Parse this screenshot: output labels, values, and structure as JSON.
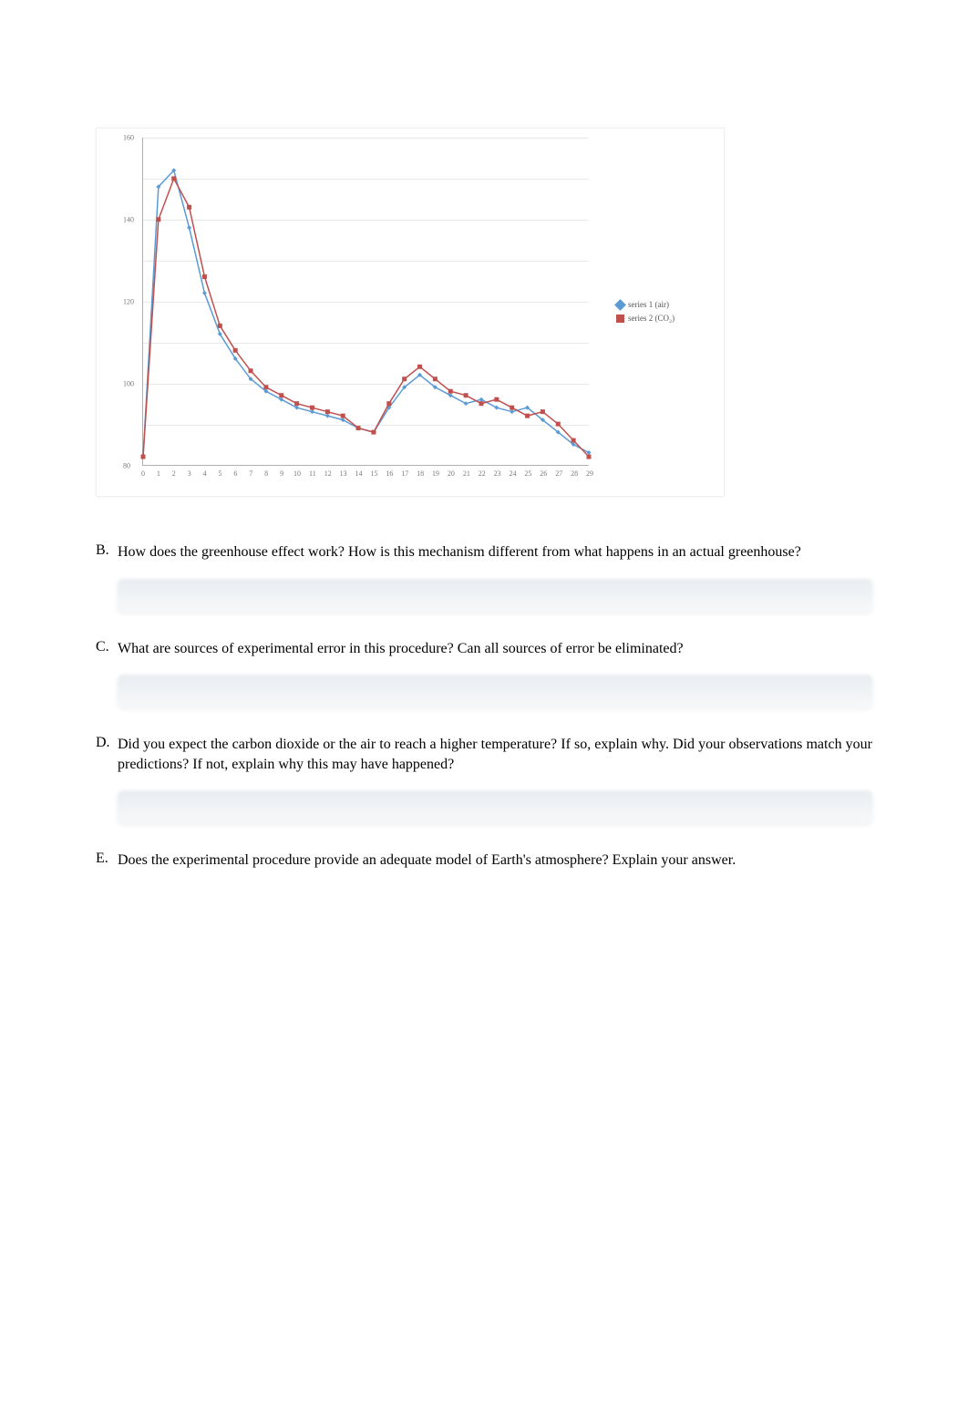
{
  "chart": {
    "type": "line",
    "background_color": "#ffffff",
    "grid_color": "#e8e8e8",
    "axis_color": "#b0b0b0",
    "tick_color": "#787878",
    "tick_fontsize": 8,
    "ylim": [
      80,
      160
    ],
    "xlim": [
      0,
      29
    ],
    "y_ticks": [
      80,
      90,
      100,
      110,
      120,
      130,
      140,
      150,
      160
    ],
    "y_tick_labels": [
      "80",
      "",
      "100",
      "",
      "120",
      "",
      "140",
      "",
      "160"
    ],
    "x_ticks": [
      0,
      1,
      2,
      3,
      4,
      5,
      6,
      7,
      8,
      9,
      10,
      11,
      12,
      13,
      14,
      15,
      16,
      17,
      18,
      19,
      20,
      21,
      22,
      23,
      24,
      25,
      26,
      27,
      28,
      29
    ],
    "x_tick_labels": [
      "0",
      "1",
      "2",
      "3",
      "4",
      "5",
      "6",
      "7",
      "8",
      "9",
      "10",
      "11",
      "12",
      "13",
      "14",
      "15",
      "16",
      "17",
      "18",
      "19",
      "20",
      "21",
      "22",
      "23",
      "24",
      "25",
      "26",
      "27",
      "28",
      "29"
    ],
    "series": [
      {
        "name": "Series 1 (air)",
        "legend_label": "series 1 (air)",
        "color": "#5b9bd5",
        "marker": "diamond",
        "marker_size": 5,
        "line_width": 1.5,
        "data": [
          [
            0,
            82
          ],
          [
            1,
            148
          ],
          [
            2,
            152
          ],
          [
            3,
            138
          ],
          [
            4,
            122
          ],
          [
            5,
            112
          ],
          [
            6,
            106
          ],
          [
            7,
            101
          ],
          [
            8,
            98
          ],
          [
            9,
            96
          ],
          [
            10,
            94
          ],
          [
            11,
            93
          ],
          [
            12,
            92
          ],
          [
            13,
            91
          ],
          [
            14,
            89
          ],
          [
            15,
            88
          ],
          [
            16,
            94
          ],
          [
            17,
            99
          ],
          [
            18,
            102
          ],
          [
            19,
            99
          ],
          [
            20,
            97
          ],
          [
            21,
            95
          ],
          [
            22,
            96
          ],
          [
            23,
            94
          ],
          [
            24,
            93
          ],
          [
            25,
            94
          ],
          [
            26,
            91
          ],
          [
            27,
            88
          ],
          [
            28,
            85
          ],
          [
            29,
            83
          ]
        ]
      },
      {
        "name": "Series 2 (CO2)",
        "legend_label": "series 2 (CO₂)",
        "color": "#c0504d",
        "marker": "square",
        "marker_size": 5,
        "line_width": 1.5,
        "data": [
          [
            0,
            82
          ],
          [
            1,
            140
          ],
          [
            2,
            150
          ],
          [
            3,
            143
          ],
          [
            4,
            126
          ],
          [
            5,
            114
          ],
          [
            6,
            108
          ],
          [
            7,
            103
          ],
          [
            8,
            99
          ],
          [
            9,
            97
          ],
          [
            10,
            95
          ],
          [
            11,
            94
          ],
          [
            12,
            93
          ],
          [
            13,
            92
          ],
          [
            14,
            89
          ],
          [
            15,
            88
          ],
          [
            16,
            95
          ],
          [
            17,
            101
          ],
          [
            18,
            104
          ],
          [
            19,
            101
          ],
          [
            20,
            98
          ],
          [
            21,
            97
          ],
          [
            22,
            95
          ],
          [
            23,
            96
          ],
          [
            24,
            94
          ],
          [
            25,
            92
          ],
          [
            26,
            93
          ],
          [
            27,
            90
          ],
          [
            28,
            86
          ],
          [
            29,
            82
          ]
        ]
      }
    ],
    "legend_position": "right"
  },
  "questions": {
    "B": {
      "letter": "B.",
      "text": "How does the greenhouse effect work? How is this mechanism different from what happens in an actual greenhouse?"
    },
    "C": {
      "letter": "C.",
      "text": "What are sources of experimental error in this procedure? Can all sources of error be eliminated?"
    },
    "D": {
      "letter": "D.",
      "text": "Did you expect the carbon dioxide or the air to reach a higher temperature? If so, explain why. Did your observations match your predictions? If not, explain why this may have happened?"
    },
    "E": {
      "letter": "E.",
      "text": "Does the experimental procedure provide an adequate model of Earth's atmosphere? Explain your answer."
    }
  }
}
